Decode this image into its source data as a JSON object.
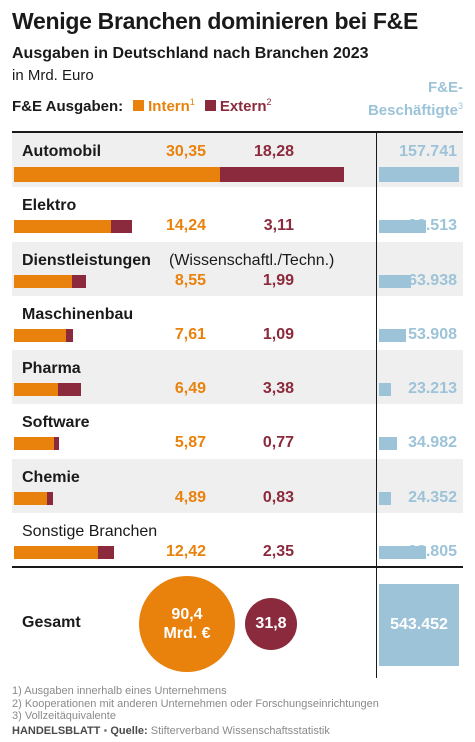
{
  "title": "Wenige Branchen dominieren bei F&E",
  "subtitle": "Ausgaben in Deutschland nach Branchen 2023",
  "unit": "in Mrd. Euro",
  "legend": {
    "title": "F&E Ausgaben:",
    "intern": "Intern",
    "intern_ref": "1",
    "extern": "Extern",
    "extern_ref": "2",
    "employees_line1": "F&E-",
    "employees_line2": "Beschäftigte",
    "employees_ref": "3"
  },
  "colors": {
    "intern": "#e8820c",
    "extern": "#8b2a3c",
    "employees": "#9cc3d8",
    "shade": "#efefef"
  },
  "chart_data": {
    "type": "bar",
    "orientation": "horizontal",
    "stacked": true,
    "categories": [
      "Automobil",
      "Elektro",
      "Dienstleistungen",
      "Maschinenbau",
      "Pharma",
      "Software",
      "Chemie",
      "Sonstige Branchen"
    ],
    "category_suffix": [
      "",
      "",
      "(Wissenschaftl./Techn.)",
      "",
      "",
      "",
      "",
      ""
    ],
    "series": [
      {
        "name": "Intern",
        "values": [
          30.35,
          14.24,
          8.55,
          7.61,
          6.49,
          5.87,
          4.89,
          12.42
        ]
      },
      {
        "name": "Extern",
        "values": [
          18.28,
          3.11,
          1.99,
          1.09,
          3.38,
          0.77,
          0.83,
          2.35
        ]
      },
      {
        "name": "F&E-Beschäftigte",
        "values": [
          157741,
          92513,
          63938,
          53908,
          23213,
          34982,
          24352,
          92805
        ]
      }
    ],
    "labels": {
      "intern": [
        "30,35",
        "14,24",
        "8,55",
        "7,61",
        "6,49",
        "5,87",
        "4,89",
        "12,42"
      ],
      "extern": [
        "18,28",
        "3,11",
        "1,99",
        "1,09",
        "3,38",
        "0,77",
        "0,83",
        "2,35"
      ],
      "employees": [
        "157.741",
        "92.513",
        "63.938",
        "53.908",
        "23.213",
        "34.982",
        "24.352",
        "92.805"
      ]
    },
    "totals": {
      "label": "Gesamt",
      "intern_line1": "90,4",
      "intern_line2": "Mrd. €",
      "intern_value": 90.4,
      "extern": "31,8",
      "extern_value": 31.8,
      "employees": "543.452",
      "employees_value": 543452
    }
  },
  "footnotes": [
    "1) Ausgaben innerhalb eines Unternehmens",
    "2) Kooperationen mit anderen Unternehmen oder Forschungseinrichtungen",
    "3) Vollzeitäquivalente"
  ],
  "source": {
    "brand": "HANDELSBLATT",
    "separator": " • ",
    "label": "Quelle:",
    "text": " Stifterverband Wissenschaftsstatistik"
  }
}
